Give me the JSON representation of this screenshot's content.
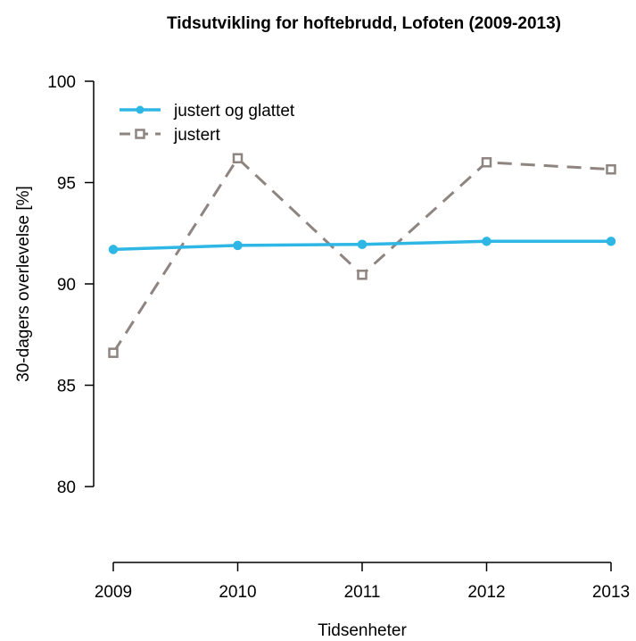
{
  "chart_data": {
    "type": "line",
    "title": "Tidsutvikling for hoftebrudd, Lofoten (2009-2013)",
    "xlabel": "Tidsenheter",
    "ylabel": "30-dagers overlevelse [%]",
    "categories": [
      "2009",
      "2010",
      "2011",
      "2012",
      "2013"
    ],
    "ylim": [
      80,
      100
    ],
    "yticks": [
      80,
      85,
      90,
      95,
      100
    ],
    "grid": false,
    "legend_position": "top-left",
    "series": [
      {
        "name": "justert og glattet",
        "values": [
          91.7,
          91.9,
          91.95,
          92.1,
          92.1
        ],
        "color": "#2eb7e5",
        "marker": "circle",
        "dash": "solid"
      },
      {
        "name": "justert",
        "values": [
          86.6,
          96.2,
          90.45,
          96.0,
          95.65
        ],
        "color": "#8e8580",
        "marker": "square",
        "dash": "dashed"
      }
    ]
  }
}
